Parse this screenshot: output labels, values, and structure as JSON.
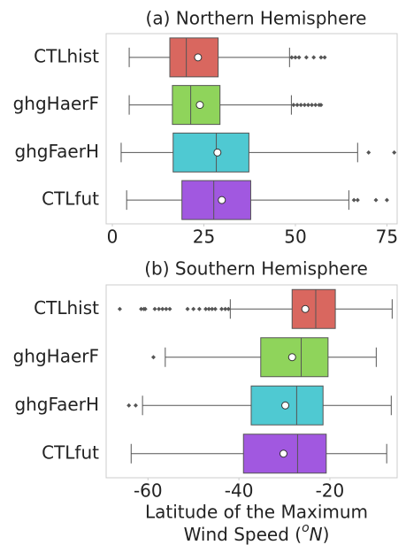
{
  "chart_data": [
    {
      "type": "box",
      "title": "(a) Northern Hemisphere",
      "categories": [
        "CTLhist",
        "ghgHaerF",
        "ghgFaerH",
        "CTLfut"
      ],
      "colors": [
        "#d9675f",
        "#8fd45b",
        "#4fc9d2",
        "#a158e0"
      ],
      "boxes": [
        {
          "whislo": 4.6,
          "q1": 15.7,
          "med": 20.2,
          "q3": 28.9,
          "whishi": 48.4,
          "mean": 23.4,
          "fliers": [
            49,
            50,
            51,
            53,
            55,
            57,
            58
          ]
        },
        {
          "whislo": 4.6,
          "q1": 16.4,
          "med": 21.4,
          "q3": 29.4,
          "whishi": 48.9,
          "mean": 23.9,
          "fliers": [
            49.5,
            50.5,
            51.5,
            52.5,
            53.5,
            54.5,
            55.5,
            56.5,
            57
          ]
        },
        {
          "whislo": 2.4,
          "q1": 16.6,
          "med": 28.4,
          "q3": 37.3,
          "whishi": 67,
          "mean": 28.7,
          "fliers": [
            70,
            77
          ]
        },
        {
          "whislo": 3.9,
          "q1": 19,
          "med": 27.7,
          "q3": 37.8,
          "whishi": 64.6,
          "mean": 29.9,
          "fliers": [
            66,
            67,
            72,
            75
          ]
        }
      ],
      "xlim": [
        -1.7,
        77.8
      ],
      "xticks": [
        0,
        25,
        50,
        75
      ]
    },
    {
      "type": "box",
      "title": "(b) Southern Hemisphere",
      "categories": [
        "CTLhist",
        "ghgHaerF",
        "ghgFaerH",
        "CTLfut"
      ],
      "colors": [
        "#d9675f",
        "#8fd45b",
        "#4fc9d2",
        "#a158e0"
      ],
      "boxes": [
        {
          "whislo": -41.9,
          "q1": -28.3,
          "med": -23.1,
          "q3": -18.8,
          "whishi": -6.3,
          "mean": -25.4,
          "fliers": [
            -66.2,
            -61.5,
            -60.9,
            -60.6,
            -58.5,
            -57.6,
            -56.8,
            -56,
            -55.2,
            -51.3,
            -50,
            -48.7,
            -47.3,
            -46.6,
            -45.9,
            -45.2,
            -43.8,
            -43,
            -42.3
          ]
        },
        {
          "whislo": -56.2,
          "q1": -35.2,
          "med": -26.3,
          "q3": -20.4,
          "whishi": -9.8,
          "mean": -28.3,
          "fliers": [
            -58.8
          ]
        },
        {
          "whislo": -61.2,
          "q1": -37.3,
          "med": -27.3,
          "q3": -21.5,
          "whishi": -6.5,
          "mean": -29.8,
          "fliers": [
            -64.2,
            -62.7
          ]
        },
        {
          "whislo": -63.7,
          "q1": -39,
          "med": -27.1,
          "q3": -20.8,
          "whishi": -7.5,
          "mean": -30.2,
          "fliers": []
        }
      ],
      "xlim": [
        -69.2,
        -5.2
      ],
      "xticks": [
        -60,
        -40,
        -20
      ],
      "xlabel": {
        "line1": "Latitude of the Maximum",
        "line2": "Wind Speed (",
        "sup": "o",
        "unit": "N",
        "close": ")"
      }
    }
  ]
}
